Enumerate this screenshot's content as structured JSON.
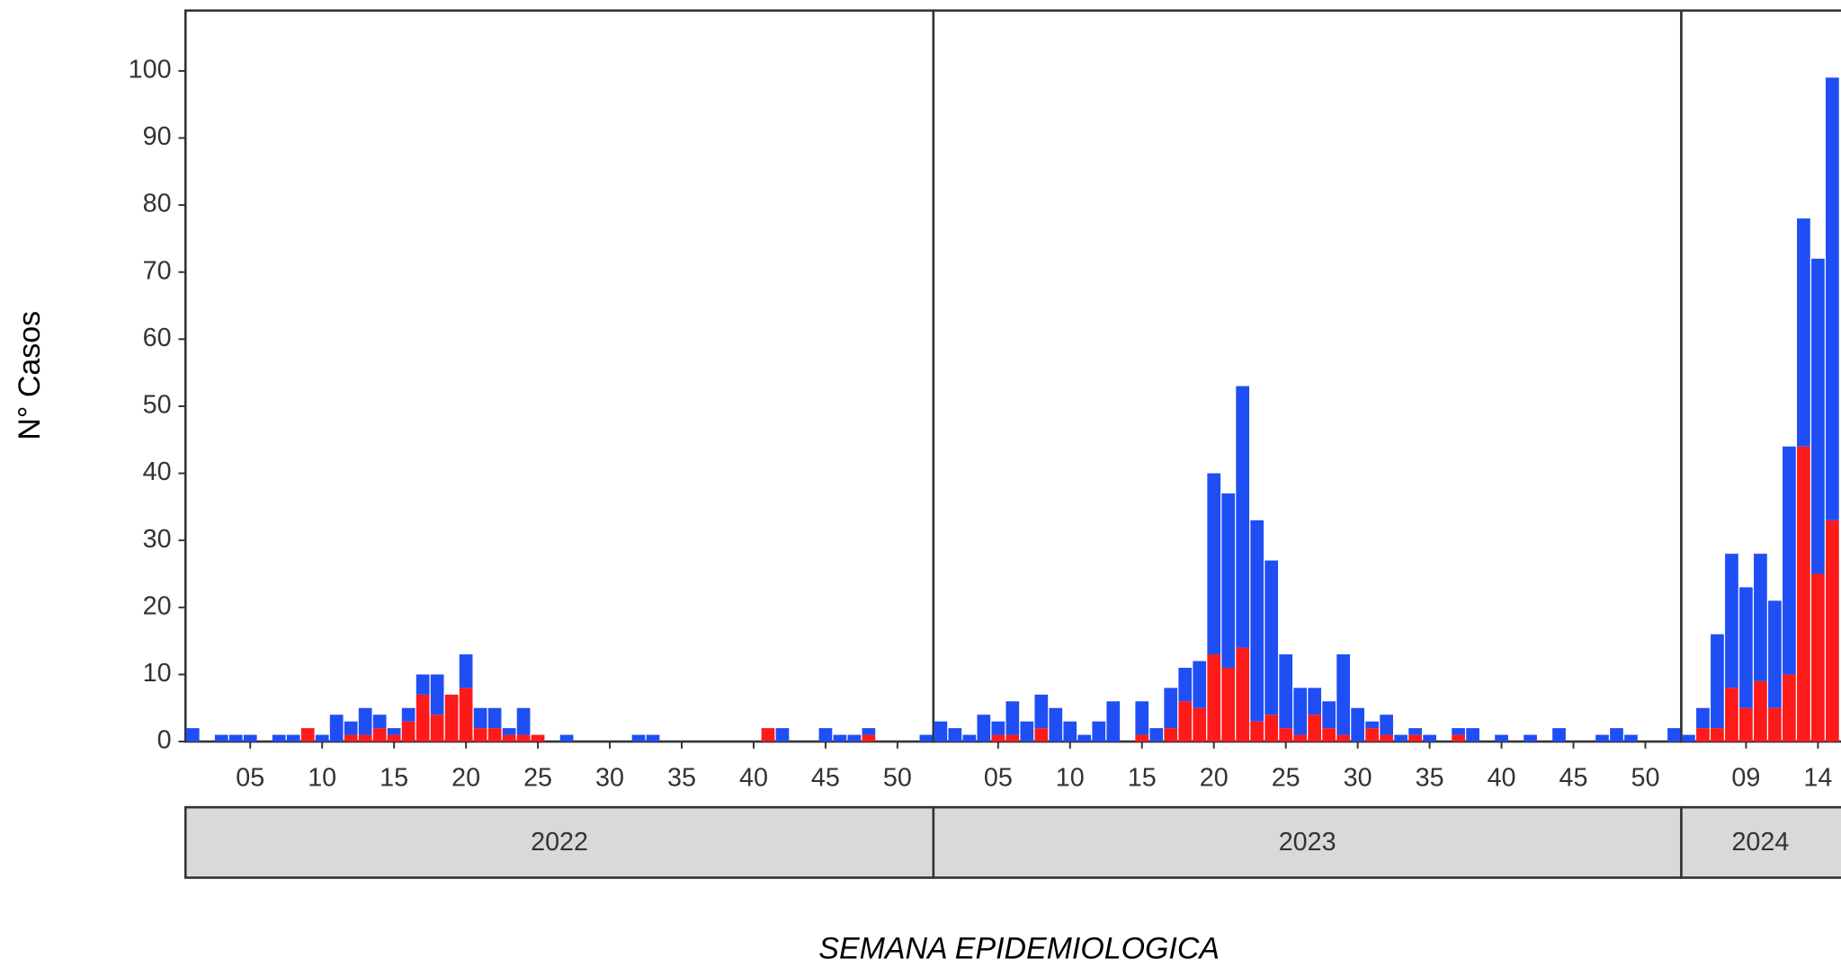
{
  "chart_data": {
    "type": "bar",
    "stacked": true,
    "ylabel": "N° Casos",
    "xlabel": "SEMANA EPIDEMIOLOGICA",
    "ylim": [
      0,
      109
    ],
    "yticks": [
      0,
      10,
      20,
      30,
      40,
      50,
      60,
      70,
      80,
      90,
      100
    ],
    "facets": [
      {
        "label": "2022",
        "xlim": [
          0.5,
          52.5
        ],
        "x": [
          1,
          2,
          3,
          4,
          5,
          6,
          7,
          8,
          9,
          10,
          11,
          12,
          13,
          14,
          15,
          16,
          17,
          18,
          19,
          20,
          21,
          22,
          23,
          24,
          25,
          26,
          27,
          28,
          29,
          30,
          31,
          32,
          33,
          34,
          35,
          36,
          37,
          38,
          39,
          40,
          41,
          42,
          43,
          44,
          45,
          46,
          47,
          48,
          49,
          50,
          51,
          52
        ],
        "xticks": [
          {
            "value": 5,
            "label": "05"
          },
          10,
          15,
          20,
          25,
          30,
          35,
          40,
          45,
          50
        ],
        "series": [
          {
            "color": "#ff1a1a",
            "values": [
              0,
              0,
              0,
              0,
              0,
              0,
              0,
              0,
              2,
              0,
              0,
              1,
              1,
              2,
              1,
              3,
              7,
              4,
              7,
              8,
              2,
              2,
              1,
              1,
              1,
              0,
              0,
              0,
              0,
              0,
              0,
              0,
              0,
              0,
              0,
              0,
              0,
              0,
              0,
              0,
              2,
              0,
              0,
              0,
              0,
              0,
              0,
              1,
              0,
              0,
              0,
              0
            ]
          },
          {
            "color": "#1f4ef5",
            "values": [
              2,
              0,
              1,
              1,
              1,
              0,
              1,
              1,
              0,
              1,
              4,
              2,
              4,
              2,
              1,
              2,
              3,
              6,
              0,
              5,
              3,
              3,
              1,
              4,
              0,
              0,
              1,
              0,
              0,
              0,
              0,
              1,
              1,
              0,
              0,
              0,
              0,
              0,
              0,
              0,
              0,
              2,
              0,
              0,
              2,
              1,
              1,
              1,
              0,
              0,
              0,
              1
            ]
          }
        ]
      },
      {
        "label": "2023",
        "xlim": [
          0.5,
          52.5
        ],
        "x": [
          1,
          2,
          3,
          4,
          5,
          6,
          7,
          8,
          9,
          10,
          11,
          12,
          13,
          14,
          15,
          16,
          17,
          18,
          19,
          20,
          21,
          22,
          23,
          24,
          25,
          26,
          27,
          28,
          29,
          30,
          31,
          32,
          33,
          34,
          35,
          36,
          37,
          38,
          39,
          40,
          41,
          42,
          43,
          44,
          45,
          46,
          47,
          48,
          49,
          50,
          51,
          52
        ],
        "xticks": [
          {
            "value": 5,
            "label": "05"
          },
          10,
          15,
          20,
          25,
          30,
          35,
          40,
          45,
          50
        ],
        "series": [
          {
            "color": "#ff1a1a",
            "values": [
              0,
              0,
              0,
              0,
              1,
              1,
              0,
              2,
              0,
              0,
              0,
              0,
              0,
              0,
              1,
              0,
              2,
              6,
              5,
              13,
              11,
              14,
              3,
              4,
              2,
              1,
              4,
              2,
              1,
              0,
              2,
              1,
              0,
              1,
              0,
              0,
              1,
              0,
              0,
              0,
              0,
              0,
              0,
              0,
              0,
              0,
              0,
              0,
              0,
              0,
              0,
              0
            ]
          },
          {
            "color": "#1f4ef5",
            "values": [
              3,
              2,
              1,
              4,
              2,
              5,
              3,
              5,
              5,
              3,
              1,
              3,
              6,
              0,
              5,
              2,
              6,
              5,
              7,
              27,
              26,
              39,
              30,
              23,
              11,
              7,
              4,
              4,
              12,
              5,
              1,
              3,
              1,
              1,
              1,
              0,
              1,
              2,
              0,
              1,
              0,
              1,
              0,
              2,
              0,
              0,
              1,
              2,
              1,
              0,
              0,
              2
            ]
          }
        ]
      },
      {
        "label": "2024",
        "xlim": [
          4.5,
          15.5
        ],
        "x": [
          5,
          6,
          7,
          8,
          9,
          10,
          11,
          12,
          13,
          14,
          15
        ],
        "xticks": [
          {
            "value": 9,
            "label": "09"
          },
          14
        ],
        "series": [
          {
            "color": "#ff1a1a",
            "values": [
              0,
              2,
              2,
              8,
              5,
              9,
              5,
              10,
              44,
              25,
              33
            ]
          },
          {
            "color": "#1f4ef5",
            "values": [
              1,
              3,
              14,
              20,
              18,
              19,
              16,
              34,
              34,
              47,
              66
            ]
          }
        ]
      }
    ]
  }
}
